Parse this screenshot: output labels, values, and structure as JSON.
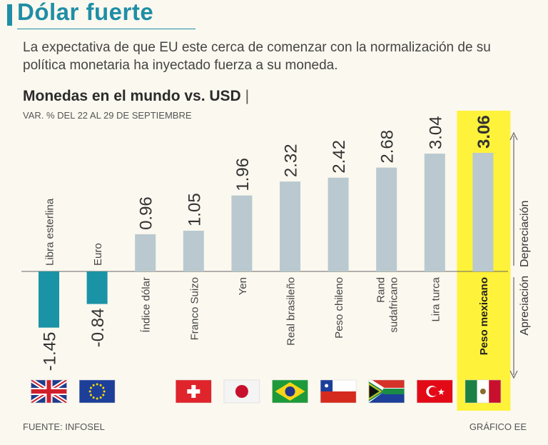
{
  "header": {
    "title": "Dólar fuerte",
    "subtitle": "La expectativa de que EU este cerca de comenzar con la normalización de su política monetaria ha inyectado fuerza a su moneda."
  },
  "chart_heading": {
    "title": "Monedas en el mundo vs. USD",
    "separator": "|",
    "subtitle": "VAR. % DEL 22 AL 29 DE SEPTIEMBRE"
  },
  "footer": {
    "source": "FUENTE: INFOSEL",
    "credit": "GRÁFICO EE"
  },
  "colors": {
    "negative": "#1b93a6",
    "positive": "#b9c9cf",
    "highlight": "#fff23a",
    "accent": "#1f8ea6"
  },
  "chart_data": {
    "type": "bar",
    "title": "Monedas en el mundo vs. USD",
    "subtitle": "VAR. % DEL 22 AL 29 DE SEPTIEMBRE",
    "categories": [
      "Libra esterlina",
      "Euro",
      "Índice dólar",
      "Franco Suizo",
      "Yen",
      "Real brasileño",
      "Peso chileno",
      "Rand sudafricano",
      "Lira turca",
      "Peso mexicano"
    ],
    "values": [
      -1.45,
      -0.84,
      0.96,
      1.05,
      1.96,
      2.32,
      2.42,
      2.68,
      3.04,
      3.06
    ],
    "value_labels": [
      "-1.45",
      "-0.84",
      "0.96",
      "1.05",
      "1.96",
      "2.32",
      "2.42",
      "2.68",
      "3.04",
      "3.06"
    ],
    "highlight": "Peso mexicano",
    "axis_labels": {
      "positive": "Depreciación",
      "negative": "Apreciación"
    },
    "flags": [
      "uk",
      "eu",
      "none",
      "switzerland",
      "japan",
      "brazil",
      "chile",
      "south-africa",
      "turkey",
      "mexico"
    ],
    "ylim": [
      -1.6,
      3.3
    ]
  }
}
